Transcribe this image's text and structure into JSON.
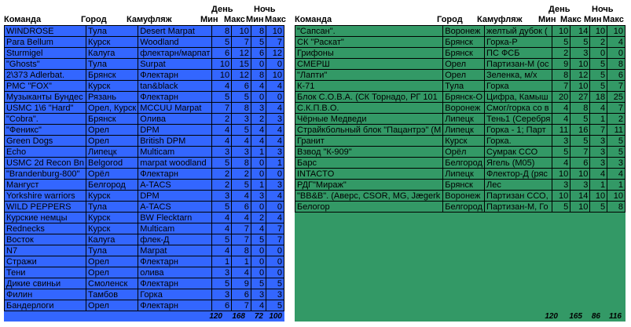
{
  "headers": {
    "team": "Команда",
    "city": "Город",
    "camo": "Камуфляж",
    "day": "День",
    "night": "Ночь",
    "min": "Мин",
    "max": "Макс"
  },
  "colors": {
    "left_bg": "#3366ff",
    "right_bg": "#339966"
  },
  "left": {
    "rows": [
      [
        "WINDROSE",
        "Тула",
        "Desert Marpat",
        "8",
        "10",
        "8",
        "10"
      ],
      [
        "Para Bellum",
        "Курск",
        "Woodland",
        "5",
        "7",
        "5",
        "7"
      ],
      [
        "Sturmigel",
        "Калуга",
        "флектарн/марпат",
        "6",
        "12",
        "6",
        "12"
      ],
      [
        "\"Ghosts\"",
        "Тула",
        "Surpat",
        "10",
        "15",
        "0",
        "0"
      ],
      [
        "2\\373 Adlerbat.",
        "Брянск",
        "Флектарн",
        "10",
        "12",
        "8",
        "10"
      ],
      [
        "PMC \"FOX\"",
        "Курск",
        "tan&black",
        "4",
        "6",
        "4",
        "4"
      ],
      [
        "Музыканты Бундес",
        "Рязань",
        "Флектарн",
        "5",
        "5",
        "0",
        "0"
      ],
      [
        "USMC 1\\6 \"Hard\"",
        "Орел, Курск",
        "MCCUU Marpat",
        "7",
        "8",
        "3",
        "4"
      ],
      [
        "\"Cobra\".",
        "Брянск",
        "Олива",
        "2",
        "3",
        "2",
        "3"
      ],
      [
        "\"Феникс\"",
        "Орел",
        "DPM",
        "4",
        "5",
        "4",
        "4"
      ],
      [
        "Green Dogs",
        "Орел",
        "British DPM",
        "4",
        "4",
        "4",
        "4"
      ],
      [
        "Echo",
        "Липецк",
        "Multicam",
        "3",
        "3",
        "1",
        "3"
      ],
      [
        "USMC 2d Recon Bn",
        "Belgorod",
        "marpat woodland",
        "5",
        "8",
        "0",
        "1"
      ],
      [
        "\"Brandenburg-800\"",
        "Орёл",
        "Флектарн",
        "2",
        "2",
        "0",
        "0"
      ],
      [
        "Мангуст",
        "Белгород",
        "A-TACS",
        "2",
        "5",
        "1",
        "3"
      ],
      [
        "Yorkshire warriors",
        "Курск",
        "DPM",
        "3",
        "4",
        "3",
        "4"
      ],
      [
        "WILD PEPPERS",
        "Тула",
        "A-TACS",
        "5",
        "6",
        "0",
        "0"
      ],
      [
        "Курские немцы",
        "Курск",
        "BW Flecktarn",
        "4",
        "4",
        "2",
        "4"
      ],
      [
        "Rednecks",
        "Курск",
        "Multicam",
        "4",
        "7",
        "4",
        "7"
      ],
      [
        "Восток",
        "Калуга",
        "флек-Д",
        "5",
        "7",
        "5",
        "7"
      ],
      [
        "N7",
        "Тула",
        "Marpat",
        "4",
        "8",
        "0",
        "0"
      ],
      [
        "Стражи",
        "Орел",
        "Флектарн",
        "1",
        "1",
        "0",
        "0"
      ],
      [
        "Тени",
        "Орел",
        "олива",
        "3",
        "4",
        "0",
        "0"
      ],
      [
        "Дикие свиньи",
        "Смоленск",
        "Флектарн",
        "5",
        "9",
        "5",
        "5"
      ],
      [
        "Филин",
        "Тамбов",
        "Горка",
        "3",
        "6",
        "3",
        "3"
      ],
      [
        "Бандерлоги",
        "Орел",
        "Флектарн",
        "6",
        "7",
        "4",
        "5"
      ]
    ],
    "totals": [
      "120",
      "168",
      "72",
      "100"
    ]
  },
  "right": {
    "rows": [
      [
        "\"Сапсан\".",
        "Воронеж",
        "желтый дубок (",
        "10",
        "14",
        "10",
        "10"
      ],
      [
        "СК \"Раскат\"",
        "Брянск",
        "Горка-Р",
        "5",
        "5",
        "2",
        "4"
      ],
      [
        "Грифоны",
        "Брянск",
        "ПС ФСБ",
        "2",
        "3",
        "0",
        "0"
      ],
      [
        "СМЕРШ",
        "Орел",
        "Партизан-М (ос",
        "9",
        "10",
        "5",
        "8"
      ],
      [
        "\"Лапти\"",
        "Орел",
        "Зеленка, м/х",
        "8",
        "12",
        "5",
        "6"
      ],
      [
        "К-71",
        "Тула",
        "Горка",
        "7",
        "10",
        "5",
        "7"
      ],
      [
        "Блок С.О.В.А. (СК Торнадо, РГ 101",
        "Брянск-О",
        "Цифра, Камыш",
        "20",
        "27",
        "18",
        "25"
      ],
      [
        "С.К.П.В.О.",
        "Воронеж",
        "Смог/горка со в",
        "4",
        "8",
        "4",
        "7"
      ],
      [
        "Чёрные Медведи",
        "Липецк",
        "Тень1 (Серебря",
        "4",
        "5",
        "1",
        "2"
      ],
      [
        "Страйкбольный блок \"Пацантрэ\" (М",
        "Липецк",
        " Горка - 1; Парт",
        "11",
        "16",
        "7",
        "11"
      ],
      [
        "Гранит",
        "Курск",
        "Горка.",
        "3",
        "5",
        "3",
        "5"
      ],
      [
        "Взвод \"К-909\"",
        "Орёл",
        "Сумрак ССО",
        "5",
        "7",
        "3",
        "5"
      ],
      [
        "Барс",
        "Белгород",
        "Ягель (М05)",
        "4",
        "6",
        "3",
        "3"
      ],
      [
        "INTACTO",
        "Липецк",
        "Флектор-Д (ряс",
        "10",
        "10",
        "4",
        "4"
      ],
      [
        "РДГ\"Мираж\"",
        "Брянск",
        "Лес",
        "3",
        "3",
        "1",
        "1"
      ],
      [
        "\"BB&B\". (Аверс, CSOR, MG, Jægerk",
        "Воронеж",
        "Партизан ССО,",
        "10",
        "14",
        "10",
        "10"
      ],
      [
        "Белогор",
        "Белгород",
        "Партизан-М, Го",
        "5",
        "10",
        "5",
        "8"
      ]
    ],
    "totals": [
      "120",
      "165",
      "86",
      "116"
    ]
  }
}
